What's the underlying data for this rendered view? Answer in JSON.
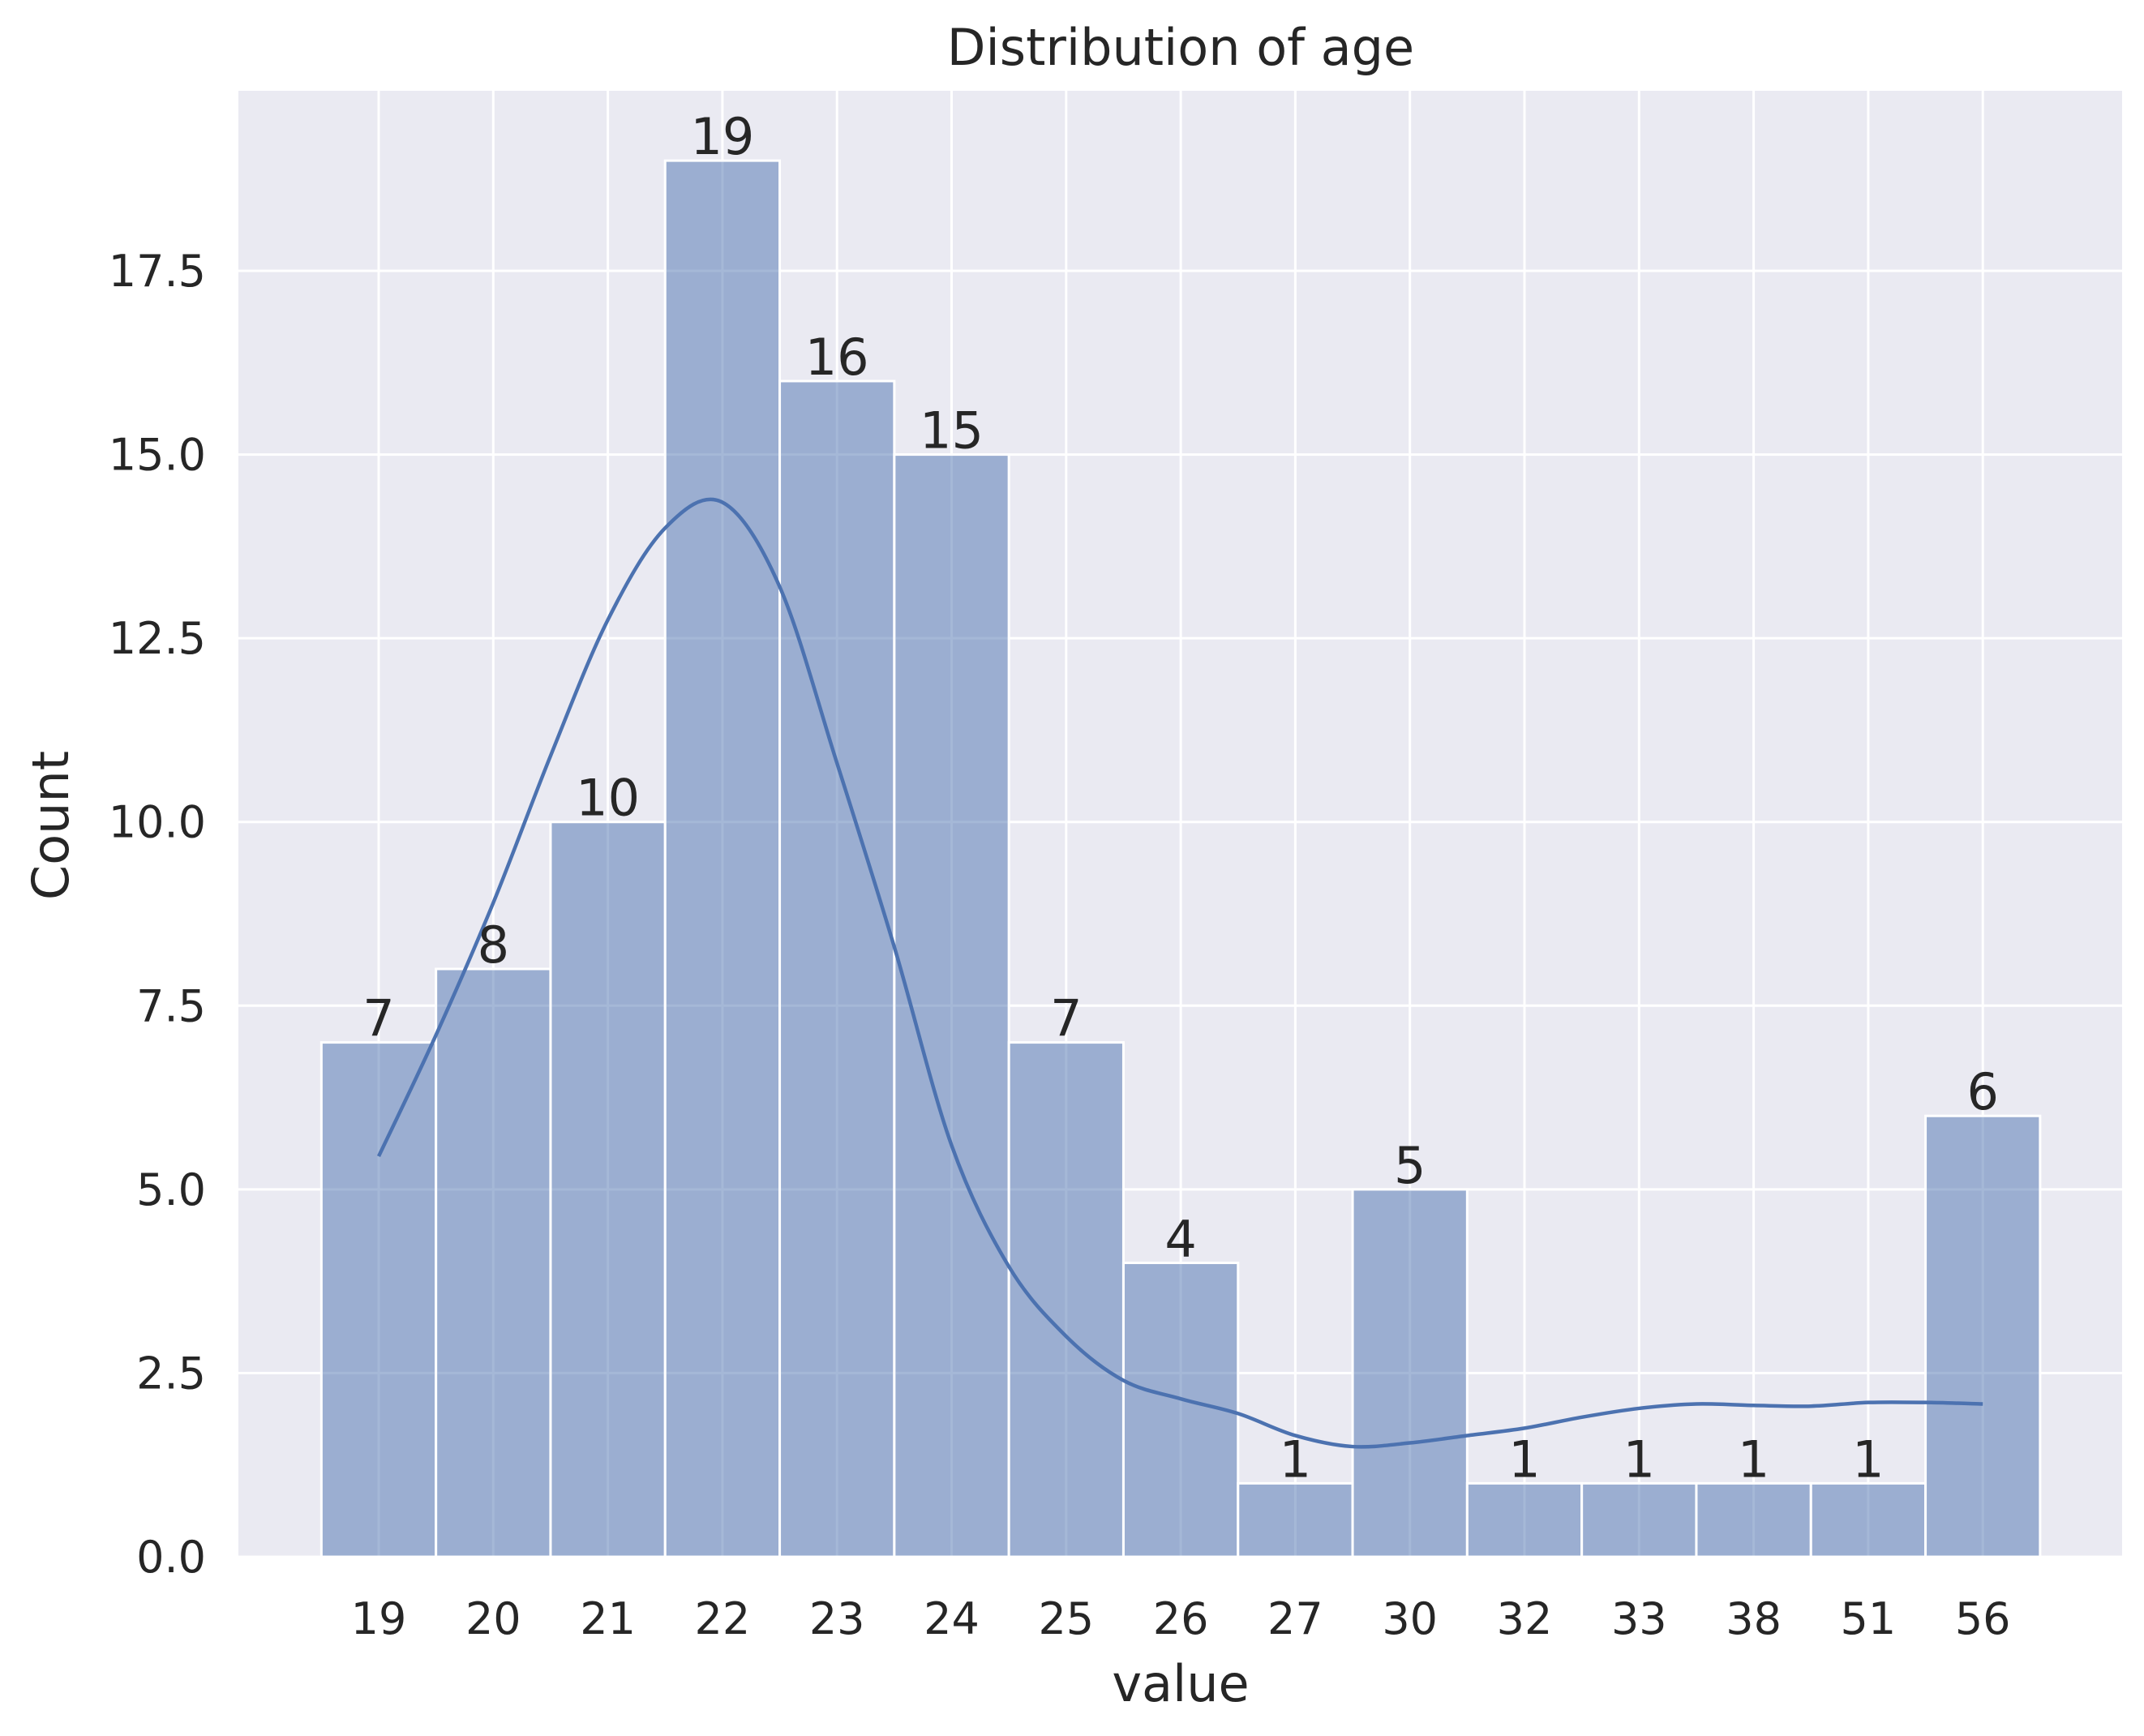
{
  "chart_data": {
    "type": "bar",
    "title": "Distribution of age",
    "xlabel": "value",
    "ylabel": "Count",
    "categories": [
      "19",
      "20",
      "21",
      "22",
      "23",
      "24",
      "25",
      "26",
      "27",
      "30",
      "32",
      "33",
      "38",
      "51",
      "56"
    ],
    "values": [
      7,
      8,
      10,
      19,
      16,
      15,
      7,
      4,
      1,
      5,
      1,
      1,
      1,
      1,
      6
    ],
    "data_labels": [
      "7",
      "8",
      "10",
      "19",
      "16",
      "15",
      "7",
      "4",
      "1",
      "5",
      "1",
      "1",
      "1",
      "1",
      "6"
    ],
    "ylim": [
      0,
      19.95
    ],
    "yticks": [
      0.0,
      2.5,
      5.0,
      7.5,
      10.0,
      12.5,
      15.0,
      17.5
    ],
    "ytick_labels": [
      "0.0",
      "2.5",
      "5.0",
      "7.5",
      "10.0",
      "12.5",
      "15.0",
      "17.5"
    ],
    "kde_line": {
      "x_positions": [
        0,
        0.5,
        1,
        1.5,
        2,
        2.5,
        3,
        3.5,
        4,
        4.5,
        5,
        5.5,
        6,
        6.5,
        7,
        7.5,
        8,
        8.5,
        9,
        9.5,
        10,
        10.5,
        11,
        11.5,
        12,
        12.5,
        13,
        13.5,
        14
      ],
      "values": [
        5.45,
        7.1,
        8.9,
        10.9,
        12.75,
        14.0,
        14.35,
        13.2,
        10.8,
        8.3,
        5.6,
        3.95,
        3.0,
        2.4,
        2.15,
        1.95,
        1.65,
        1.5,
        1.55,
        1.65,
        1.75,
        1.9,
        2.02,
        2.08,
        2.06,
        2.05,
        2.1,
        2.1,
        2.08
      ]
    },
    "grid": true,
    "colors": {
      "background": "#EAEAF2",
      "bar_fill": "#4C72B0",
      "bar_opacity": 0.5,
      "line": "#4C72B0",
      "grid": "#FFFFFF",
      "text": "#262626"
    }
  }
}
